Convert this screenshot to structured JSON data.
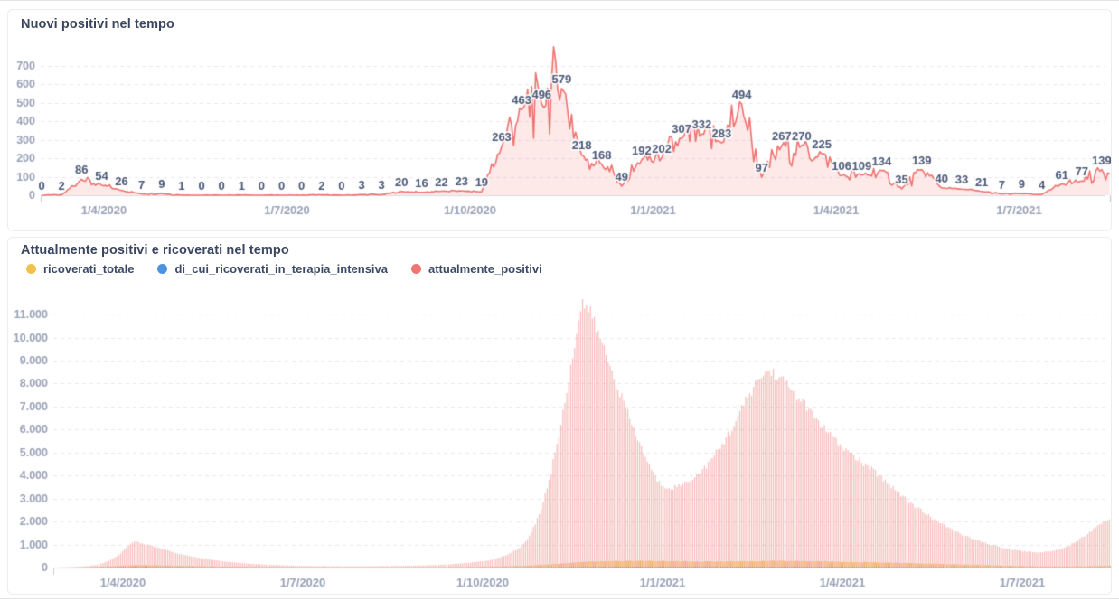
{
  "page": {
    "background": "#ffffff",
    "divider_color": "#e3e3e8"
  },
  "colors": {
    "accent_red": "#ee7572",
    "accent_yellow": "#f2c14d",
    "accent_blue": "#4d94e0",
    "title_text": "#3a4660",
    "data_label_text": "#4a5776",
    "tick_text": "#99a2b6",
    "gridline": "#e9e9ee",
    "axis_line": "#d9dbe3"
  },
  "chart_data": [
    {
      "type": "line",
      "title": "Nuovi positivi nel tempo",
      "grid": "dashed-horizontal",
      "line_color": "#ee7270",
      "area_fill": "rgba(238,117,114,0.16)",
      "x_ticks": [
        "1/4/2020",
        "1/7/2020",
        "1/10/2020",
        "1/1/2021",
        "1/4/2021",
        "1/7/2021"
      ],
      "y_ticks": [
        "0",
        "100",
        "200",
        "300",
        "400",
        "500",
        "600",
        "700"
      ],
      "ylim": [
        0,
        835
      ],
      "point_interval_days": 10,
      "values": [
        0,
        2,
        86,
        54,
        26,
        7,
        9,
        1,
        0,
        0,
        1,
        0,
        0,
        0,
        2,
        0,
        3,
        3,
        20,
        16,
        22,
        23,
        19,
        263,
        463,
        496,
        579,
        218,
        168,
        49,
        192,
        202,
        307,
        332,
        283,
        494,
        97,
        267,
        270,
        225,
        106,
        109,
        134,
        35,
        139,
        40,
        33,
        21,
        7,
        9,
        4,
        61,
        77,
        139
      ]
    },
    {
      "type": "bar",
      "title": "Attualmente positivi e ricoverati nel tempo",
      "grid": "dashed-horizontal",
      "legend_position": "top",
      "legend": [
        {
          "label": "ricoverati_totale",
          "color": "#f2c14d"
        },
        {
          "label": "di_cui_ricoverati_in_terapia_intensiva",
          "color": "#4d94e0"
        },
        {
          "label": "attualmente_positivi",
          "color": "#ee7572"
        }
      ],
      "x_ticks": [
        "1/4/2020",
        "1/7/2020",
        "1/10/2020",
        "1/1/2021",
        "1/4/2021",
        "1/7/2021"
      ],
      "y_ticks": [
        "0",
        "1.000",
        "2.000",
        "3.000",
        "4.000",
        "5.000",
        "6.000",
        "7.000",
        "8.000",
        "9.000",
        "10.000",
        "11.000"
      ],
      "ylim": [
        0,
        11800
      ],
      "series": [
        {
          "name": "attualmente_positivi",
          "bar_color": "rgba(238,117,114,0.5)",
          "points": [
            [
              0.0,
              0
            ],
            [
              0.012,
              8
            ],
            [
              0.025,
              40
            ],
            [
              0.04,
              120
            ],
            [
              0.05,
              280
            ],
            [
              0.06,
              550
            ],
            [
              0.068,
              900
            ],
            [
              0.074,
              1140
            ],
            [
              0.082,
              1060
            ],
            [
              0.092,
              930
            ],
            [
              0.103,
              780
            ],
            [
              0.115,
              620
            ],
            [
              0.13,
              460
            ],
            [
              0.148,
              330
            ],
            [
              0.165,
              240
            ],
            [
              0.185,
              160
            ],
            [
              0.205,
              110
            ],
            [
              0.23,
              75
            ],
            [
              0.26,
              55
            ],
            [
              0.29,
              55
            ],
            [
              0.32,
              70
            ],
            [
              0.35,
              95
            ],
            [
              0.372,
              135
            ],
            [
              0.39,
              200
            ],
            [
              0.409,
              300
            ],
            [
              0.42,
              420
            ],
            [
              0.43,
              600
            ],
            [
              0.439,
              850
            ],
            [
              0.447,
              1250
            ],
            [
              0.454,
              1850
            ],
            [
              0.461,
              2700
            ],
            [
              0.468,
              3900
            ],
            [
              0.474,
              5200
            ],
            [
              0.48,
              6600
            ],
            [
              0.486,
              8200
            ],
            [
              0.491,
              9600
            ],
            [
              0.495,
              10700
            ],
            [
              0.499,
              11500
            ],
            [
              0.503,
              11350
            ],
            [
              0.508,
              10900
            ],
            [
              0.514,
              10200
            ],
            [
              0.521,
              9300
            ],
            [
              0.529,
              8300
            ],
            [
              0.537,
              7300
            ],
            [
              0.545,
              6300
            ],
            [
              0.553,
              5400
            ],
            [
              0.56,
              4700
            ],
            [
              0.566,
              4100
            ],
            [
              0.571,
              3700
            ],
            [
              0.577,
              3520
            ],
            [
              0.583,
              3480
            ],
            [
              0.59,
              3550
            ],
            [
              0.597,
              3700
            ],
            [
              0.605,
              3950
            ],
            [
              0.614,
              4300
            ],
            [
              0.623,
              4800
            ],
            [
              0.632,
              5400
            ],
            [
              0.641,
              6100
            ],
            [
              0.65,
              6900
            ],
            [
              0.658,
              7600
            ],
            [
              0.665,
              8100
            ],
            [
              0.67,
              8400
            ],
            [
              0.674,
              8520
            ],
            [
              0.679,
              8480
            ],
            [
              0.685,
              8300
            ],
            [
              0.692,
              8000
            ],
            [
              0.7,
              7600
            ],
            [
              0.709,
              7100
            ],
            [
              0.718,
              6600
            ],
            [
              0.727,
              6100
            ],
            [
              0.735,
              5700
            ],
            [
              0.742,
              5350
            ],
            [
              0.75,
              5050
            ],
            [
              0.759,
              4750
            ],
            [
              0.769,
              4400
            ],
            [
              0.779,
              4050
            ],
            [
              0.789,
              3650
            ],
            [
              0.799,
              3250
            ],
            [
              0.809,
              2850
            ],
            [
              0.819,
              2500
            ],
            [
              0.829,
              2180
            ],
            [
              0.839,
              1900
            ],
            [
              0.849,
              1650
            ],
            [
              0.859,
              1430
            ],
            [
              0.869,
              1240
            ],
            [
              0.879,
              1080
            ],
            [
              0.889,
              950
            ],
            [
              0.899,
              840
            ],
            [
              0.909,
              760
            ],
            [
              0.918,
              700
            ],
            [
              0.928,
              660
            ],
            [
              0.936,
              670
            ],
            [
              0.944,
              720
            ],
            [
              0.952,
              810
            ],
            [
              0.96,
              960
            ],
            [
              0.968,
              1170
            ],
            [
              0.976,
              1430
            ],
            [
              0.984,
              1700
            ],
            [
              0.991,
              1950
            ],
            [
              1.0,
              2130
            ]
          ]
        },
        {
          "name": "ricoverati_totale",
          "bar_color": "rgba(241,173,78,0.95)",
          "points": [
            [
              0.0,
              0
            ],
            [
              0.03,
              15
            ],
            [
              0.055,
              60
            ],
            [
              0.074,
              110
            ],
            [
              0.095,
              95
            ],
            [
              0.12,
              70
            ],
            [
              0.15,
              45
            ],
            [
              0.185,
              28
            ],
            [
              0.23,
              15
            ],
            [
              0.29,
              10
            ],
            [
              0.35,
              14
            ],
            [
              0.395,
              25
            ],
            [
              0.42,
              45
            ],
            [
              0.445,
              80
            ],
            [
              0.465,
              130
            ],
            [
              0.482,
              190
            ],
            [
              0.495,
              240
            ],
            [
              0.51,
              270
            ],
            [
              0.53,
              285
            ],
            [
              0.56,
              290
            ],
            [
              0.59,
              275
            ],
            [
              0.62,
              260
            ],
            [
              0.65,
              265
            ],
            [
              0.674,
              290
            ],
            [
              0.7,
              285
            ],
            [
              0.73,
              265
            ],
            [
              0.76,
              240
            ],
            [
              0.79,
              210
            ],
            [
              0.82,
              175
            ],
            [
              0.85,
              140
            ],
            [
              0.88,
              105
            ],
            [
              0.905,
              75
            ],
            [
              0.928,
              50
            ],
            [
              0.95,
              42
            ],
            [
              0.975,
              55
            ],
            [
              1.0,
              80
            ]
          ]
        },
        {
          "name": "di_cui_ricoverati_in_terapia_intensiva",
          "bar_color": "rgba(95,130,196,0.95)",
          "points": [
            [
              0.0,
              0
            ],
            [
              0.04,
              8
            ],
            [
              0.074,
              26
            ],
            [
              0.11,
              18
            ],
            [
              0.15,
              10
            ],
            [
              0.22,
              4
            ],
            [
              0.3,
              3
            ],
            [
              0.38,
              4
            ],
            [
              0.43,
              8
            ],
            [
              0.465,
              16
            ],
            [
              0.495,
              28
            ],
            [
              0.53,
              36
            ],
            [
              0.57,
              38
            ],
            [
              0.62,
              32
            ],
            [
              0.674,
              36
            ],
            [
              0.72,
              33
            ],
            [
              0.77,
              27
            ],
            [
              0.82,
              20
            ],
            [
              0.87,
              13
            ],
            [
              0.91,
              8
            ],
            [
              0.94,
              5
            ],
            [
              0.97,
              5
            ],
            [
              1.0,
              9
            ]
          ]
        }
      ]
    }
  ]
}
